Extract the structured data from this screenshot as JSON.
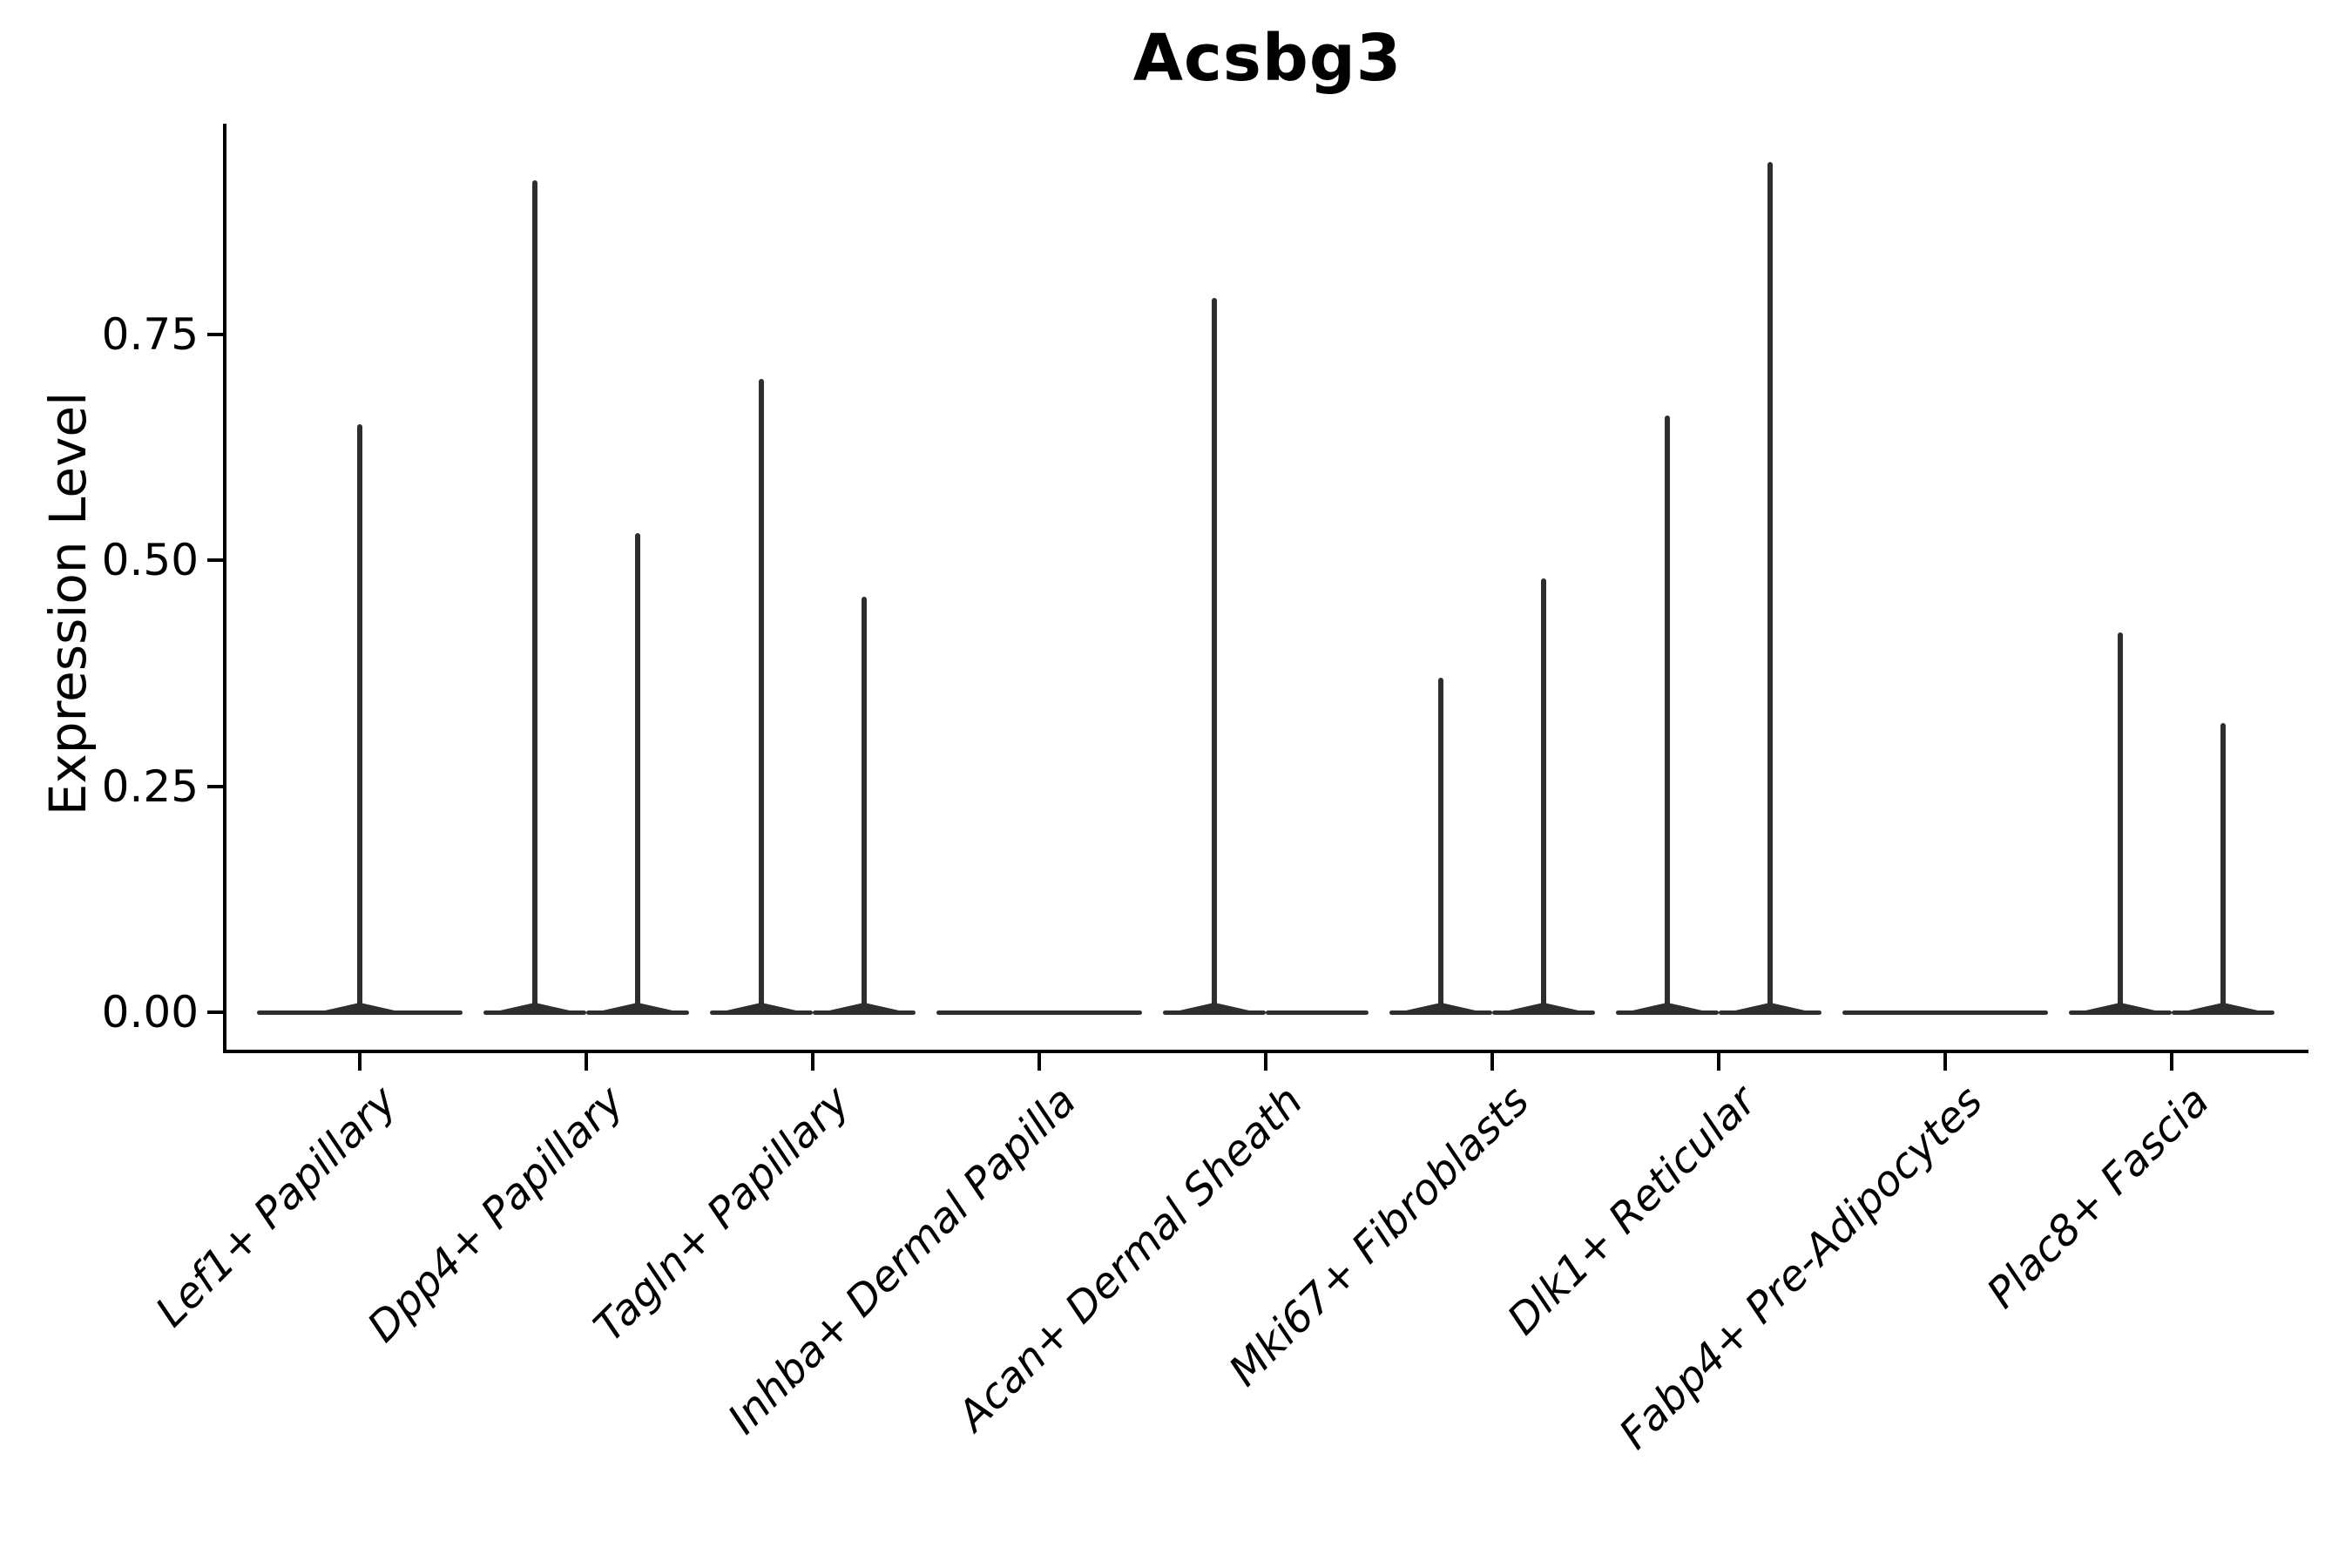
{
  "chart_data": {
    "type": "violin",
    "title": "Acsbg3",
    "ylabel": "Expression Level",
    "xlabel": "",
    "legend": "none",
    "grid": "off",
    "ylim": [
      0,
      0.98
    ],
    "y_ticks": [
      {
        "value": 0.0,
        "label": "0.00"
      },
      {
        "value": 0.25,
        "label": "0.25"
      },
      {
        "value": 0.5,
        "label": "0.50"
      },
      {
        "value": 0.75,
        "label": "0.75"
      }
    ],
    "categories": [
      "Lef1+ Papillary",
      "Dpp4+ Papillary",
      "Tagln+ Papillary",
      "Inhba+ Dermal Papilla",
      "Acan+ Dermal Sheath",
      "Mki67+ Fibroblasts",
      "Dlk1+ Reticular",
      "Fabp4+ Pre-Adipocytes",
      "Plac8+ Fascia"
    ],
    "groups": [
      {
        "label": "Lef1+ Papillary",
        "violins": [
          {
            "position": "center",
            "max": 0.65
          }
        ]
      },
      {
        "label": "Dpp4+ Papillary",
        "violins": [
          {
            "position": "left",
            "max": 0.92
          },
          {
            "position": "right",
            "max": 0.53
          }
        ]
      },
      {
        "label": "Tagln+ Papillary",
        "violins": [
          {
            "position": "left",
            "max": 0.7
          },
          {
            "position": "right",
            "max": 0.46
          }
        ]
      },
      {
        "label": "Inhba+ Dermal Papilla",
        "violins": [
          {
            "position": "center",
            "max": 0.0
          }
        ]
      },
      {
        "label": "Acan+ Dermal Sheath",
        "violins": [
          {
            "position": "left",
            "max": 0.79
          },
          {
            "position": "right",
            "max": 0.0
          }
        ]
      },
      {
        "label": "Mki67+ Fibroblasts",
        "violins": [
          {
            "position": "left",
            "max": 0.37
          },
          {
            "position": "right",
            "max": 0.48
          }
        ]
      },
      {
        "label": "Dlk1+ Reticular",
        "violins": [
          {
            "position": "left",
            "max": 0.66
          },
          {
            "position": "right",
            "max": 0.94
          }
        ]
      },
      {
        "label": "Fabp4+ Pre-Adipocytes",
        "violins": [
          {
            "position": "center",
            "max": 0.0
          }
        ]
      },
      {
        "label": "Plac8+ Fascia",
        "violins": [
          {
            "position": "left",
            "max": 0.42
          },
          {
            "position": "right",
            "max": 0.32
          }
        ]
      }
    ],
    "colors": {
      "violin": "#2e2e2e",
      "axis": "#000000",
      "text": "#000000",
      "background": "#ffffff"
    }
  }
}
